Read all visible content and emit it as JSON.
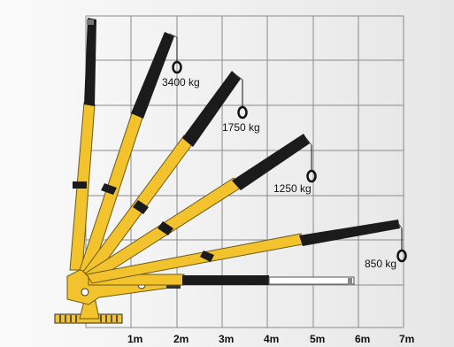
{
  "diagram": {
    "x_axis_labels": [
      "1m",
      "2m",
      "3m",
      "4m",
      "5m",
      "6m",
      "7m"
    ],
    "loads": [
      {
        "label": "3400 kg"
      },
      {
        "label": "1750 kg"
      },
      {
        "label": "1250 kg"
      },
      {
        "label": "850 kg"
      }
    ],
    "colors": {
      "boom_yellow": "#f2c32c",
      "boom_outline": "#6b5a1a",
      "extension_black": "#1b1b1b",
      "grid": "#8a8a8a",
      "background": "#f1f1f1"
    }
  }
}
